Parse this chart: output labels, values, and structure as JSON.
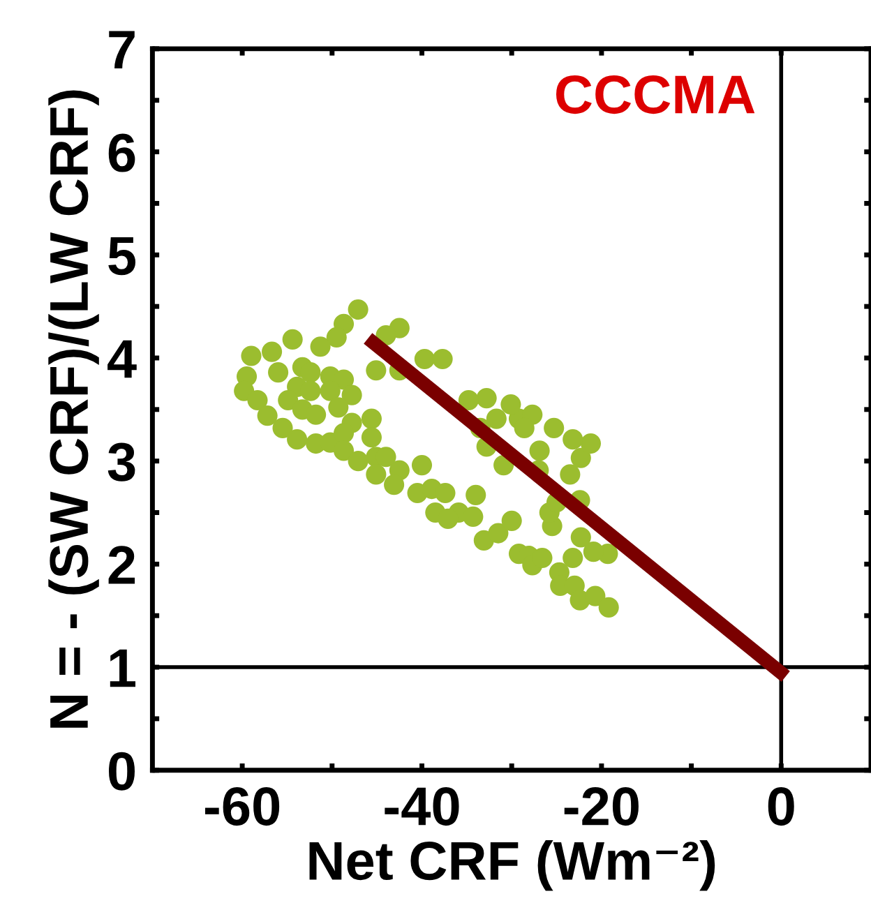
{
  "chart_data": {
    "type": "scatter",
    "xlabel": "Net CRF (Wm⁻²)",
    "ylabel": "N = - (SW CRF)/(LW CRF)",
    "annotations": [
      "CCCMA"
    ],
    "xlim": [
      -70,
      10
    ],
    "ylim": [
      0,
      7
    ],
    "xticks": [
      -60,
      {
        "value": -50,
        "label": null
      },
      -40,
      {
        "value": -30,
        "label": null
      },
      -20,
      {
        "value": -10,
        "label": null
      },
      0
    ],
    "yticks": [
      0,
      {
        "value": 0.5,
        "label": null
      },
      1,
      {
        "value": 1.5,
        "label": null
      },
      2,
      {
        "value": 2.5,
        "label": null
      },
      3,
      {
        "value": 3.5,
        "label": null
      },
      4,
      {
        "value": 4.5,
        "label": null
      },
      5,
      {
        "value": 5.5,
        "label": null
      },
      6,
      {
        "value": 6.5,
        "label": null
      },
      7
    ],
    "grid": false,
    "legend": false,
    "ref_lines": [
      {
        "axis": "x",
        "value": 0,
        "color": "#000000"
      },
      {
        "axis": "y",
        "value": 1,
        "color": "#000000"
      }
    ],
    "series": [
      {
        "color": "#9bbd2f",
        "marker": "circle",
        "x": [
          -47.1,
          -48.7,
          -49.5,
          -51.3,
          -54.4,
          -56.7,
          -59.0,
          -59.5,
          -59.8,
          -58.3,
          -57.2,
          -55.5,
          -53.9,
          -51.8,
          -50.2,
          -53.3,
          -52.4,
          -53.9,
          -52.4,
          -56.0,
          -54.9,
          -53.3,
          -51.8,
          -50.2,
          -48.7,
          -50.2,
          -47.8,
          -49.3,
          -47.8,
          -45.6,
          -45.6,
          -48.7,
          -48.7,
          -47.1,
          -45.1,
          -44.0,
          -45.1,
          -42.5,
          -43.1,
          -40.0,
          -40.5,
          -38.9,
          -37.4,
          -38.5,
          -35.9,
          -34.3,
          -34.0,
          -37.1,
          -33.1,
          -31.5,
          -30.0,
          -29.2,
          -28.1,
          -27.7,
          -26.6,
          -24.7,
          -24.6,
          -23.0,
          -22.4,
          -20.7,
          -19.2,
          -19.3,
          -20.9,
          -23.2,
          -22.3,
          -25.5,
          -25.8,
          -22.4,
          -25.0,
          -23.5,
          -22.3,
          -21.2,
          -23.2,
          -25.3,
          -26.9,
          -27.0,
          -30.9,
          -32.8,
          -33.5,
          -31.7,
          -29.2,
          -27.7,
          -30.1,
          -32.8,
          -34.8,
          -28.6,
          -39.7,
          -37.7,
          -42.5,
          -44.0,
          -45.1,
          -42.5
        ],
        "values": [
          4.47,
          4.33,
          4.2,
          4.11,
          4.18,
          4.06,
          4.02,
          3.82,
          3.68,
          3.59,
          3.44,
          3.32,
          3.21,
          3.17,
          3.18,
          3.91,
          3.86,
          3.72,
          3.68,
          3.86,
          3.59,
          3.5,
          3.45,
          3.82,
          3.79,
          3.68,
          3.64,
          3.52,
          3.37,
          3.41,
          3.23,
          3.27,
          3.1,
          3.0,
          3.04,
          3.04,
          2.87,
          2.91,
          2.77,
          2.96,
          2.69,
          2.73,
          2.69,
          2.5,
          2.5,
          2.46,
          2.67,
          2.44,
          2.23,
          2.3,
          2.42,
          2.1,
          2.08,
          1.99,
          2.06,
          1.92,
          1.79,
          1.79,
          1.65,
          1.69,
          1.58,
          2.1,
          2.12,
          2.06,
          2.26,
          2.37,
          2.5,
          2.62,
          2.6,
          2.87,
          3.03,
          3.17,
          3.21,
          3.32,
          3.1,
          2.91,
          2.96,
          3.14,
          3.32,
          3.41,
          3.41,
          3.45,
          3.55,
          3.61,
          3.59,
          3.32,
          3.99,
          3.99,
          4.29,
          4.22,
          3.88,
          3.88
        ]
      },
      {
        "type": "line",
        "color": "#7a0000",
        "line_style": "solid",
        "x": [
          -46,
          0.5
        ],
        "values": [
          4.19,
          0.91
        ]
      }
    ]
  }
}
